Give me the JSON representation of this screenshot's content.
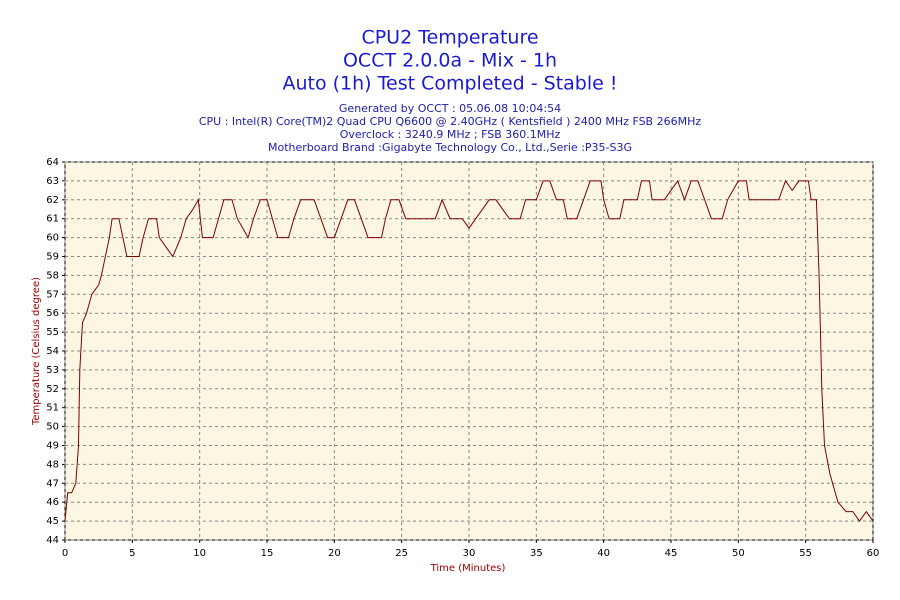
{
  "chart_data": {
    "type": "line",
    "title": [
      "CPU2 Temperature",
      "OCCT 2.0.0a - Mix - 1h",
      "Auto (1h) Test Completed - Stable !"
    ],
    "subtitle": [
      "Generated by OCCT : 05.06.08 10:04:54",
      "CPU : Intel(R) Core(TM)2 Quad CPU Q6600 @ 2.40GHz ( Kentsfield ) 2400 MHz FSB 266MHz",
      "Overclock : 3240.9 MHz ; FSB 360.1MHz",
      "Motherboard Brand :Gigabyte Technology Co., Ltd.,Serie :P35-S3G"
    ],
    "x_label": "Time (Minutes)",
    "y_label": "Temperature (Celsius degree)",
    "x": [
      0,
      0.2,
      0.5,
      0.8,
      1,
      1.1,
      1.3,
      1.6,
      2,
      2.5,
      2.7,
      3,
      3.3,
      3.5,
      4,
      4.3,
      4.6,
      5,
      5.5,
      5.8,
      6.2,
      6.8,
      7,
      7.5,
      8,
      8.3,
      8.6,
      9,
      9.5,
      9.9,
      10.2,
      11,
      11.4,
      11.8,
      12.4,
      12.8,
      13.2,
      13.6,
      14,
      14.5,
      15,
      15.4,
      15.8,
      16.6,
      17,
      17.5,
      18.5,
      19,
      19.5,
      20,
      20.5,
      21,
      21.5,
      22,
      22.5,
      23.5,
      23.8,
      24.2,
      24.8,
      25.3,
      26,
      26.8,
      27.5,
      28,
      28.6,
      29.5,
      30,
      30.5,
      31,
      31.5,
      32,
      32.5,
      33,
      33.8,
      34.2,
      35,
      35.5,
      36,
      36.5,
      37,
      37.3,
      38,
      38.5,
      39,
      39.8,
      40,
      40.4,
      41.2,
      41.5,
      42.5,
      42.8,
      43.4,
      43.6,
      44.5,
      45,
      45.5,
      46,
      46.5,
      47,
      47.5,
      48,
      48.8,
      49.2,
      50,
      50.6,
      50.8,
      53,
      53.5,
      54,
      54.5,
      55.2,
      55.4,
      55.8,
      56,
      56.2,
      56.4,
      56.8,
      57,
      57.4,
      58,
      58.5,
      59,
      59.5,
      60
    ],
    "series": [
      {
        "name": "CPU2",
        "color": "#800000",
        "values": [
          45,
          46.5,
          46.5,
          47,
          49,
          53,
          55.5,
          56,
          57,
          57.5,
          58,
          59,
          60,
          61,
          61,
          60,
          59,
          59,
          59,
          60,
          61,
          61,
          60,
          59.5,
          59,
          59.5,
          60,
          61,
          61.5,
          62,
          60,
          60,
          61,
          62,
          62,
          61,
          60.5,
          60,
          61,
          62,
          62,
          61,
          60,
          60,
          61,
          62,
          62,
          61,
          60,
          60,
          61,
          62,
          62,
          61,
          60,
          60,
          61,
          62,
          62,
          61,
          61,
          61,
          61,
          62,
          61,
          61,
          60.5,
          61,
          61.5,
          62,
          62,
          61.5,
          61,
          61,
          62,
          62,
          63,
          63,
          62,
          62,
          61,
          61,
          62,
          63,
          63,
          62,
          61,
          61,
          62,
          62,
          63,
          63,
          62,
          62,
          62.5,
          63,
          62,
          63,
          63,
          62,
          61,
          61,
          62,
          63,
          63,
          62,
          62,
          63,
          62.5,
          63,
          63,
          62,
          62,
          58,
          52,
          49,
          47.5,
          47,
          46,
          45.5,
          45.5,
          45,
          45.5,
          45
        ]
      }
    ],
    "xlim": [
      0,
      60
    ],
    "ylim": [
      44,
      64
    ],
    "xticks": [
      0,
      5,
      10,
      15,
      20,
      25,
      30,
      35,
      40,
      45,
      50,
      55,
      60
    ],
    "yticks": [
      44,
      45,
      46,
      47,
      48,
      49,
      50,
      51,
      52,
      53,
      54,
      55,
      56,
      57,
      58,
      59,
      60,
      61,
      62,
      63,
      64
    ],
    "grid": true
  }
}
